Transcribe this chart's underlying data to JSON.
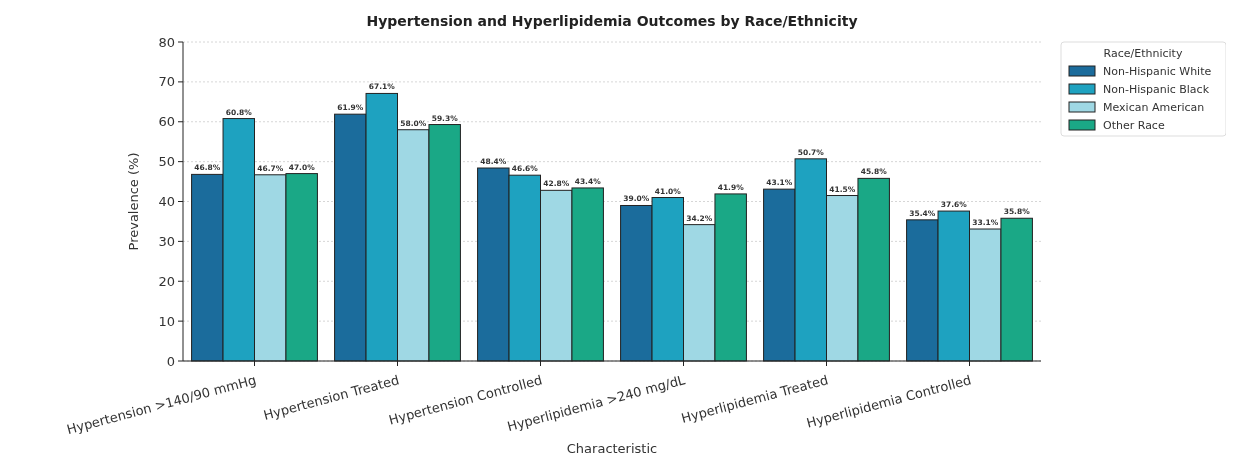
{
  "chart_data": {
    "type": "bar",
    "title": "Hypertension and Hyperlipidemia Outcomes by Race/Ethnicity",
    "xlabel": "Characteristic",
    "ylabel": "Prevalence (%)",
    "legend_title": "Race/Ethnicity",
    "categories": [
      "Hypertension >140/90 mmHg",
      "Hypertension Treated",
      "Hypertension Controlled",
      "Hyperlipidemia >240 mg/dL",
      "Hyperlipidemia Treated",
      "Hyperlipidemia Controlled"
    ],
    "series": [
      {
        "name": "Non-Hispanic White",
        "color": "#1b6c9c",
        "values": [
          46.8,
          61.9,
          48.4,
          39.0,
          43.1,
          35.4
        ],
        "value_labels": [
          "46.8%",
          "61.9%",
          "48.4%",
          "39.0%",
          "43.1%",
          "35.4%"
        ]
      },
      {
        "name": "Non-Hispanic Black",
        "color": "#1ea2c0",
        "values": [
          60.8,
          67.1,
          46.6,
          41.0,
          50.7,
          37.6
        ],
        "value_labels": [
          "60.8%",
          "67.1%",
          "46.6%",
          "41.0%",
          "50.7%",
          "37.6%"
        ]
      },
      {
        "name": "Mexican American",
        "color": "#9fd8e4",
        "values": [
          46.7,
          58.0,
          42.8,
          34.2,
          41.5,
          33.1
        ],
        "value_labels": [
          "46.7%",
          "58.0%",
          "42.8%",
          "34.2%",
          "41.5%",
          "33.1%"
        ]
      },
      {
        "name": "Other Race",
        "color": "#1aa886",
        "values": [
          47.0,
          59.3,
          43.4,
          41.9,
          45.8,
          35.8
        ],
        "value_labels": [
          "47.0%",
          "59.3%",
          "43.4%",
          "41.9%",
          "45.8%",
          "35.8%"
        ]
      }
    ],
    "ylim": [
      0,
      80
    ],
    "yticks": [
      0,
      10,
      20,
      30,
      40,
      50,
      60,
      70,
      80
    ],
    "grid": "y",
    "legend": "top right"
  }
}
